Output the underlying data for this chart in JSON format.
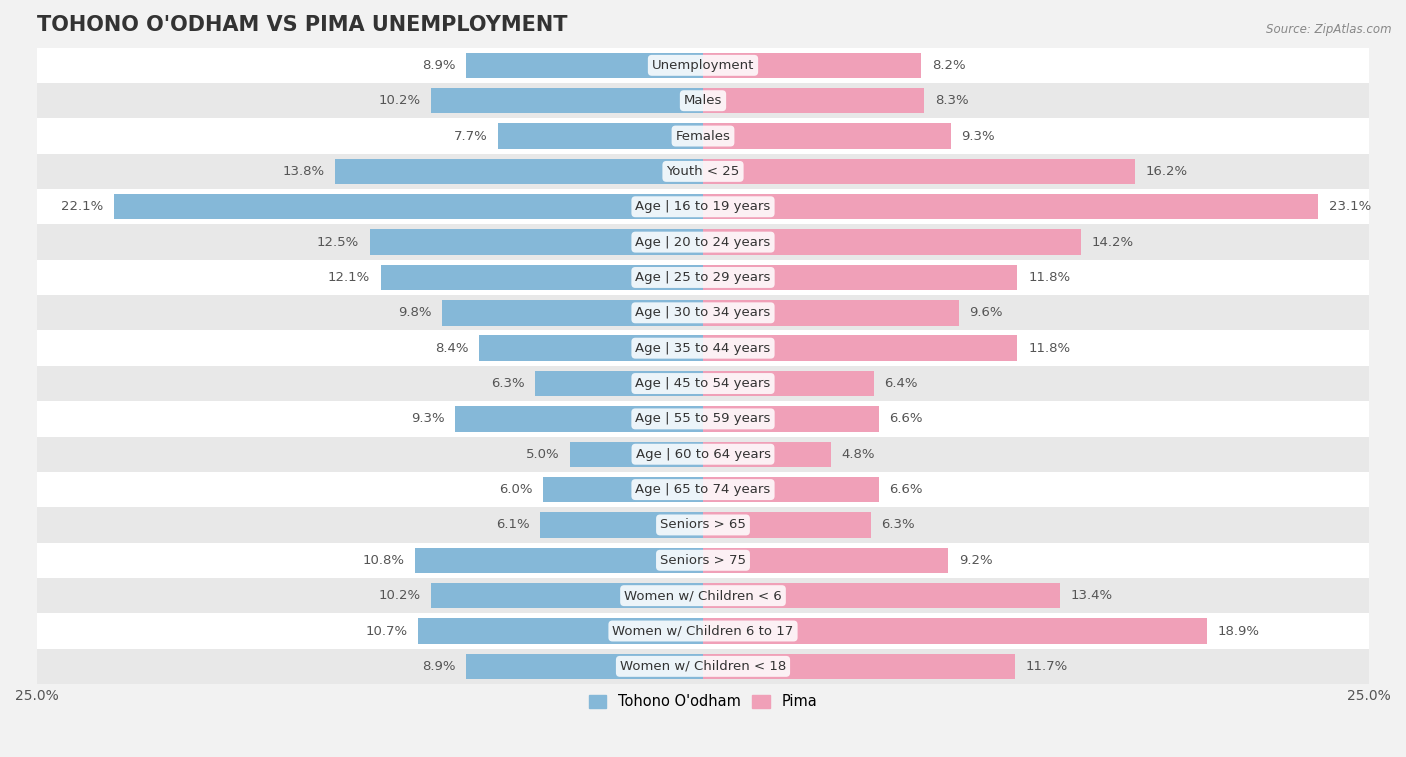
{
  "title": "TOHONO O'ODHAM VS PIMA UNEMPLOYMENT",
  "source": "Source: ZipAtlas.com",
  "categories": [
    "Unemployment",
    "Males",
    "Females",
    "Youth < 25",
    "Age | 16 to 19 years",
    "Age | 20 to 24 years",
    "Age | 25 to 29 years",
    "Age | 30 to 34 years",
    "Age | 35 to 44 years",
    "Age | 45 to 54 years",
    "Age | 55 to 59 years",
    "Age | 60 to 64 years",
    "Age | 65 to 74 years",
    "Seniors > 65",
    "Seniors > 75",
    "Women w/ Children < 6",
    "Women w/ Children 6 to 17",
    "Women w/ Children < 18"
  ],
  "tohono_values": [
    8.9,
    10.2,
    7.7,
    13.8,
    22.1,
    12.5,
    12.1,
    9.8,
    8.4,
    6.3,
    9.3,
    5.0,
    6.0,
    6.1,
    10.8,
    10.2,
    10.7,
    8.9
  ],
  "pima_values": [
    8.2,
    8.3,
    9.3,
    16.2,
    23.1,
    14.2,
    11.8,
    9.6,
    11.8,
    6.4,
    6.6,
    4.8,
    6.6,
    6.3,
    9.2,
    13.4,
    18.9,
    11.7
  ],
  "tohono_color": "#85b8d8",
  "pima_color": "#f0a0b8",
  "bg_color": "#f2f2f2",
  "row_color_even": "#ffffff",
  "row_color_odd": "#e8e8e8",
  "axis_max": 25.0,
  "bar_height": 0.72,
  "label_fontsize": 9.5,
  "value_fontsize": 9.5,
  "title_fontsize": 15,
  "legend_label_tohono": "Tohono O'odham",
  "legend_label_pima": "Pima"
}
